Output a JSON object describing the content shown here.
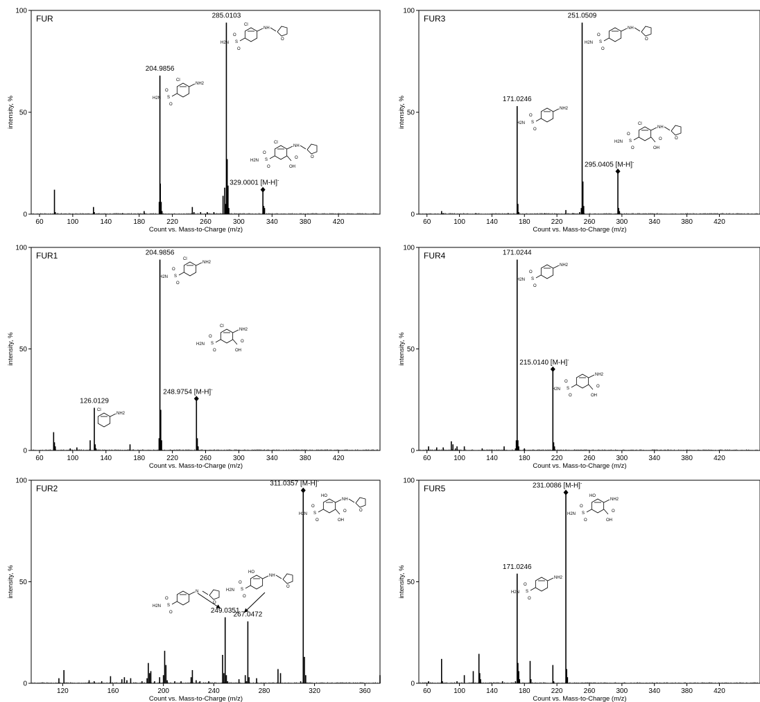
{
  "chart_data": [
    {
      "type": "bar",
      "title": "FUR",
      "xlabel": "Count vs. Mass-to-Charge (m/z)",
      "ylabel": "intensity, %",
      "xlim": [
        50,
        470
      ],
      "ylim": [
        0,
        100
      ],
      "xticks": [
        "60",
        "100",
        "140",
        "180",
        "220",
        "260",
        "300",
        "340",
        "380",
        "420"
      ],
      "yticks": [
        "0",
        "50",
        "100"
      ],
      "peaks": [
        {
          "x": 78,
          "y": 12
        },
        {
          "x": 79,
          "y": 1
        },
        {
          "x": 125,
          "y": 3.5
        },
        {
          "x": 126,
          "y": 1
        },
        {
          "x": 160,
          "y": 0.5
        },
        {
          "x": 186,
          "y": 1.5
        },
        {
          "x": 204.2,
          "y": 6
        },
        {
          "x": 204.9856,
          "y": 68
        },
        {
          "x": 205.5,
          "y": 15
        },
        {
          "x": 206.5,
          "y": 6
        },
        {
          "x": 207.5,
          "y": 1.5
        },
        {
          "x": 244,
          "y": 3.5
        },
        {
          "x": 246,
          "y": 1
        },
        {
          "x": 254,
          "y": 1
        },
        {
          "x": 262,
          "y": 1
        },
        {
          "x": 270,
          "y": 1
        },
        {
          "x": 281,
          "y": 9
        },
        {
          "x": 283,
          "y": 13
        },
        {
          "x": 284,
          "y": 5
        },
        {
          "x": 285.0103,
          "y": 94
        },
        {
          "x": 286,
          "y": 27
        },
        {
          "x": 287,
          "y": 14
        },
        {
          "x": 288,
          "y": 3
        },
        {
          "x": 329.0001,
          "y": 12
        },
        {
          "x": 330,
          "y": 4
        },
        {
          "x": 331,
          "y": 3
        }
      ],
      "annotations": [
        {
          "x": 204.9856,
          "y": 68,
          "label": "204.9856"
        },
        {
          "x": 285.0103,
          "y": 94,
          "label": "285.0103"
        },
        {
          "x": 329.0001,
          "y": 12,
          "label": "329.0001  [M-H]",
          "sup": "-",
          "marker": true
        }
      ]
    },
    {
      "type": "bar",
      "title": "FUR3",
      "xlabel": "Count vs. Mass-to-Charge (m/z)",
      "ylabel": "intensity, %",
      "xlim": [
        50,
        470
      ],
      "ylim": [
        0,
        100
      ],
      "xticks": [
        "60",
        "100",
        "140",
        "180",
        "220",
        "260",
        "300",
        "340",
        "380",
        "420"
      ],
      "yticks": [
        "0",
        "50",
        "100"
      ],
      "peaks": [
        {
          "x": 78,
          "y": 1.5
        },
        {
          "x": 80,
          "y": 0.5
        },
        {
          "x": 120,
          "y": 0.5
        },
        {
          "x": 160,
          "y": 0.5
        },
        {
          "x": 171.0246,
          "y": 53
        },
        {
          "x": 172,
          "y": 5
        },
        {
          "x": 173,
          "y": 1
        },
        {
          "x": 205,
          "y": 0.5
        },
        {
          "x": 231,
          "y": 2
        },
        {
          "x": 240,
          "y": 0.5
        },
        {
          "x": 248,
          "y": 1
        },
        {
          "x": 250,
          "y": 3
        },
        {
          "x": 251.0509,
          "y": 94
        },
        {
          "x": 252,
          "y": 16
        },
        {
          "x": 253,
          "y": 4
        },
        {
          "x": 295.0405,
          "y": 21
        },
        {
          "x": 296,
          "y": 3
        },
        {
          "x": 297,
          "y": 1.5
        }
      ],
      "annotations": [
        {
          "x": 171.0246,
          "y": 53,
          "label": "171.0246"
        },
        {
          "x": 251.0509,
          "y": 94,
          "label": "251.0509"
        },
        {
          "x": 295.0405,
          "y": 21,
          "label": "295.0405  [M-H]",
          "sup": "-",
          "marker": true
        }
      ]
    },
    {
      "type": "bar",
      "title": "FUR1",
      "xlabel": "Count vs. Mass-to-Charge (m/z)",
      "ylabel": "intensity, %",
      "xlim": [
        50,
        470
      ],
      "ylim": [
        0,
        100
      ],
      "xticks": [
        "60",
        "100",
        "140",
        "180",
        "220",
        "260",
        "300",
        "340",
        "380",
        "420"
      ],
      "yticks": [
        "0",
        "50",
        "100"
      ],
      "peaks": [
        {
          "x": 77,
          "y": 9
        },
        {
          "x": 78,
          "y": 4
        },
        {
          "x": 79,
          "y": 2
        },
        {
          "x": 97,
          "y": 1
        },
        {
          "x": 105,
          "y": 1.5
        },
        {
          "x": 121,
          "y": 5
        },
        {
          "x": 126.0129,
          "y": 21
        },
        {
          "x": 127,
          "y": 3
        },
        {
          "x": 128,
          "y": 1
        },
        {
          "x": 169,
          "y": 3
        },
        {
          "x": 204,
          "y": 6
        },
        {
          "x": 204.9856,
          "y": 94
        },
        {
          "x": 206,
          "y": 20
        },
        {
          "x": 207,
          "y": 5
        },
        {
          "x": 248.9754,
          "y": 25.5
        },
        {
          "x": 250,
          "y": 6
        },
        {
          "x": 251,
          "y": 2
        }
      ],
      "annotations": [
        {
          "x": 126.0129,
          "y": 21,
          "label": "126.0129"
        },
        {
          "x": 204.9856,
          "y": 94,
          "label": "204.9856"
        },
        {
          "x": 248.9754,
          "y": 25.5,
          "label": "248.9754  [M-H]",
          "sup": "-",
          "marker": true
        }
      ]
    },
    {
      "type": "bar",
      "title": "FUR4",
      "xlabel": "Count vs. Mass-to-Charge (m/z)",
      "ylabel": "intensity, %",
      "xlim": [
        50,
        470
      ],
      "ylim": [
        0,
        100
      ],
      "xticks": [
        "60",
        "100",
        "140",
        "180",
        "220",
        "260",
        "300",
        "340",
        "380",
        "420"
      ],
      "yticks": [
        "0",
        "50",
        "100"
      ],
      "peaks": [
        {
          "x": 62,
          "y": 2
        },
        {
          "x": 72,
          "y": 1.5
        },
        {
          "x": 80,
          "y": 1.5
        },
        {
          "x": 90,
          "y": 4.5
        },
        {
          "x": 92,
          "y": 3
        },
        {
          "x": 95,
          "y": 1
        },
        {
          "x": 97,
          "y": 2
        },
        {
          "x": 106,
          "y": 2
        },
        {
          "x": 128,
          "y": 1
        },
        {
          "x": 155,
          "y": 2
        },
        {
          "x": 169,
          "y": 1
        },
        {
          "x": 170,
          "y": 5
        },
        {
          "x": 171.0244,
          "y": 94
        },
        {
          "x": 172,
          "y": 5
        },
        {
          "x": 173,
          "y": 2
        },
        {
          "x": 180,
          "y": 1
        },
        {
          "x": 215.014,
          "y": 40
        },
        {
          "x": 216,
          "y": 4
        },
        {
          "x": 217,
          "y": 2
        }
      ],
      "annotations": [
        {
          "x": 171.0244,
          "y": 94,
          "label": "171.0244"
        },
        {
          "x": 215.014,
          "y": 40,
          "label": "215.0140  [M-H]",
          "sup": "-",
          "marker": true
        }
      ]
    },
    {
      "type": "bar",
      "title": "FUR2",
      "xlabel": "Count vs. Mass-to-Charge (m/z)",
      "ylabel": "intensity, %",
      "xlim": [
        95,
        372
      ],
      "ylim": [
        0,
        100
      ],
      "xticks": [
        "120",
        "160",
        "200",
        "240",
        "280",
        "320",
        "360"
      ],
      "yticks": [
        "0",
        "50",
        "100"
      ],
      "peaks": [
        {
          "x": 117,
          "y": 2.5
        },
        {
          "x": 121,
          "y": 6.5
        },
        {
          "x": 141,
          "y": 1.5
        },
        {
          "x": 145,
          "y": 1
        },
        {
          "x": 151,
          "y": 1
        },
        {
          "x": 158,
          "y": 3.5
        },
        {
          "x": 167,
          "y": 2
        },
        {
          "x": 169,
          "y": 3
        },
        {
          "x": 171,
          "y": 1.5
        },
        {
          "x": 174,
          "y": 2.5
        },
        {
          "x": 183,
          "y": 1
        },
        {
          "x": 187,
          "y": 2.5
        },
        {
          "x": 188,
          "y": 10
        },
        {
          "x": 189,
          "y": 5
        },
        {
          "x": 190,
          "y": 6
        },
        {
          "x": 193,
          "y": 1
        },
        {
          "x": 197,
          "y": 3
        },
        {
          "x": 200,
          "y": 4
        },
        {
          "x": 201,
          "y": 16
        },
        {
          "x": 202,
          "y": 9
        },
        {
          "x": 203,
          "y": 1.5
        },
        {
          "x": 209,
          "y": 1
        },
        {
          "x": 214,
          "y": 1
        },
        {
          "x": 222,
          "y": 3
        },
        {
          "x": 223,
          "y": 6.5
        },
        {
          "x": 226,
          "y": 1.5
        },
        {
          "x": 229,
          "y": 1
        },
        {
          "x": 236,
          "y": 1
        },
        {
          "x": 247,
          "y": 14
        },
        {
          "x": 248,
          "y": 5
        },
        {
          "x": 249.0351,
          "y": 32.5
        },
        {
          "x": 250,
          "y": 4
        },
        {
          "x": 251,
          "y": 1
        },
        {
          "x": 260,
          "y": 2
        },
        {
          "x": 265,
          "y": 4
        },
        {
          "x": 266,
          "y": 1
        },
        {
          "x": 267.0472,
          "y": 30.5
        },
        {
          "x": 268,
          "y": 3
        },
        {
          "x": 274,
          "y": 2.5
        },
        {
          "x": 291,
          "y": 7
        },
        {
          "x": 293,
          "y": 5
        },
        {
          "x": 309,
          "y": 1
        },
        {
          "x": 311.0357,
          "y": 95
        },
        {
          "x": 312,
          "y": 13
        },
        {
          "x": 313,
          "y": 4
        },
        {
          "x": 372,
          "y": 4
        }
      ],
      "annotations": [
        {
          "x": 249.0351,
          "y": 32.5,
          "label": "249.0351"
        },
        {
          "x": 267.0472,
          "y": 30.5,
          "label": "267.0472"
        },
        {
          "x": 311.0357,
          "y": 95,
          "label": "311.0357  [M-H]",
          "sup": "-",
          "marker": true
        }
      ]
    },
    {
      "type": "bar",
      "title": "FUR5",
      "xlabel": "Count vs. Mass-to-Charge (m/z)",
      "ylabel": "intensity, %",
      "xlim": [
        50,
        470
      ],
      "ylim": [
        0,
        100
      ],
      "xticks": [
        "60",
        "100",
        "140",
        "180",
        "220",
        "260",
        "300",
        "340",
        "380",
        "420"
      ],
      "yticks": [
        "0",
        "50",
        "100"
      ],
      "peaks": [
        {
          "x": 62,
          "y": 1
        },
        {
          "x": 78,
          "y": 12
        },
        {
          "x": 79,
          "y": 1
        },
        {
          "x": 97,
          "y": 1
        },
        {
          "x": 106,
          "y": 4
        },
        {
          "x": 117,
          "y": 6
        },
        {
          "x": 124,
          "y": 14.5
        },
        {
          "x": 125,
          "y": 5
        },
        {
          "x": 126,
          "y": 2
        },
        {
          "x": 153,
          "y": 1
        },
        {
          "x": 169,
          "y": 1
        },
        {
          "x": 171.0246,
          "y": 54
        },
        {
          "x": 172,
          "y": 10
        },
        {
          "x": 173,
          "y": 6
        },
        {
          "x": 174,
          "y": 2
        },
        {
          "x": 187,
          "y": 11
        },
        {
          "x": 188,
          "y": 2
        },
        {
          "x": 215,
          "y": 9
        },
        {
          "x": 216,
          "y": 1
        },
        {
          "x": 231.0086,
          "y": 94
        },
        {
          "x": 232,
          "y": 7
        },
        {
          "x": 233,
          "y": 3
        }
      ],
      "annotations": [
        {
          "x": 171.0246,
          "y": 54,
          "label": "171.0246"
        },
        {
          "x": 231.0086,
          "y": 94,
          "label": "231.0086  [M-H]",
          "sup": "-",
          "marker": true
        }
      ]
    }
  ],
  "structures": {
    "fur_main": {
      "atoms": [
        "Cl",
        "NH",
        "O",
        "H2N",
        "S",
        "O",
        "O"
      ]
    },
    "fur_204": {
      "atoms": [
        "Cl",
        "NH2",
        "H2N",
        "S",
        "O",
        "O"
      ]
    },
    "fur_329": {
      "atoms": [
        "Cl",
        "NH",
        "O",
        "H2N",
        "S",
        "O",
        "O",
        "O",
        "OH"
      ]
    },
    "fur3_251": {
      "atoms": [
        "NH",
        "O",
        "H2N",
        "S",
        "O",
        "O"
      ]
    },
    "fur3_171": {
      "atoms": [
        "NH2",
        "H2N",
        "S",
        "O",
        "O"
      ]
    },
    "fur3_295": {
      "atoms": [
        "Cl",
        "NH",
        "O",
        "H2N",
        "S",
        "O",
        "O",
        "O",
        "OH"
      ]
    },
    "fur1_204": {
      "atoms": [
        "Cl",
        "NH2",
        "H2N",
        "S",
        "O",
        "O"
      ]
    },
    "fur1_126": {
      "atoms": [
        "Cl",
        "NH2"
      ]
    },
    "fur1_248": {
      "atoms": [
        "Cl",
        "NH2",
        "H2N",
        "S",
        "O",
        "O",
        "O",
        "OH"
      ]
    },
    "fur4_171": {
      "atoms": [
        "NH2",
        "H2N",
        "S",
        "O",
        "O"
      ]
    },
    "fur4_215": {
      "atoms": [
        "NH2",
        "H2N",
        "S",
        "O",
        "O",
        "O",
        "OH"
      ]
    },
    "fur2_249": {
      "atoms": [
        "N",
        "O",
        "H2N",
        "S",
        "O",
        "O"
      ]
    },
    "fur2_267": {
      "atoms": [
        "HO",
        "NH",
        "O",
        "H2N",
        "S",
        "O",
        "O"
      ]
    },
    "fur2_311": {
      "atoms": [
        "HO",
        "NH",
        "O",
        "H2N",
        "S",
        "O",
        "O",
        "O",
        "OH"
      ]
    },
    "fur5_231": {
      "atoms": [
        "HO",
        "NH2",
        "H2N",
        "S",
        "O",
        "O",
        "O",
        "OH"
      ]
    },
    "fur5_171": {
      "atoms": [
        "NH2",
        "H2N",
        "S",
        "O",
        "O"
      ]
    }
  }
}
